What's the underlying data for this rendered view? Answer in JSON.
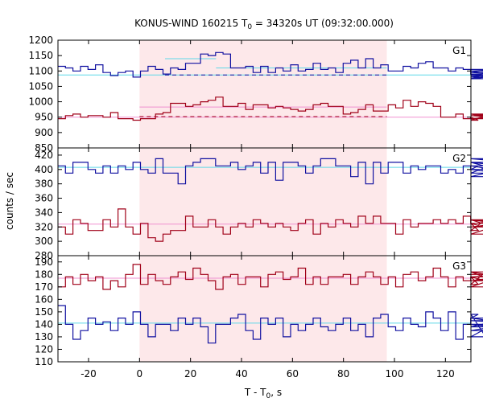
{
  "chart_data": {
    "type": "line",
    "title_prefix": "KONUS-WIND 160215 T",
    "title_sub": "0",
    "title_suffix": " = 34320s UT (09:32:00.000)",
    "xlabel_main": "T - T",
    "xlabel_sub": "0",
    "xlabel_suffix": ", s",
    "ylabel": "counts / sec",
    "xlim": [
      -32,
      130
    ],
    "xticks": [
      -20,
      0,
      20,
      40,
      60,
      80,
      100,
      120
    ],
    "xtick_labels": [
      "-20",
      "0",
      "20",
      "40",
      "60",
      "80",
      "100",
      "120"
    ],
    "highlight_interval": [
      0,
      97
    ],
    "bin_start": -32,
    "bin_width": 2.944,
    "colors": {
      "blue": "#1010a0",
      "red": "#a00018",
      "cyan": "#5fd8e8",
      "pink": "#f090d0",
      "shade": "#fde8ea"
    },
    "panels": [
      {
        "name": "G1",
        "ylim": [
          850,
          1200
        ],
        "yticks": [
          850,
          900,
          950,
          1000,
          1050,
          1100,
          1150,
          1200
        ],
        "ytick_labels": [
          "850",
          "900",
          "950",
          "1000",
          "1050",
          "1100",
          "1150",
          "1200"
        ],
        "series": [
          {
            "color": "blue",
            "values": [
              1115,
              1110,
              1100,
              1115,
              1105,
              1120,
              1095,
              1085,
              1095,
              1100,
              1080,
              1100,
              1115,
              1105,
              1090,
              1110,
              1105,
              1125,
              1125,
              1155,
              1150,
              1160,
              1155,
              1110,
              1110,
              1115,
              1095,
              1115,
              1095,
              1110,
              1100,
              1120,
              1100,
              1105,
              1125,
              1105,
              1110,
              1095,
              1125,
              1135,
              1110,
              1140,
              1110,
              1120,
              1100,
              1100,
              1115,
              1110,
              1125,
              1130,
              1110,
              1110,
              1100,
              1110,
              1105,
              1090,
              1075,
              1080,
              1090,
              1080,
              1100,
              1075,
              1105,
              1095,
              1085
            ]
          },
          {
            "color": "red",
            "values": [
              945,
              955,
              960,
              950,
              955,
              955,
              950,
              965,
              945,
              945,
              940,
              945,
              945,
              960,
              965,
              995,
              995,
              985,
              990,
              1000,
              1005,
              1015,
              985,
              985,
              995,
              975,
              990,
              990,
              980,
              985,
              980,
              975,
              970,
              975,
              990,
              995,
              985,
              985,
              960,
              965,
              975,
              990,
              970,
              970,
              990,
              980,
              1005,
              985,
              1000,
              995,
              985,
              950,
              950,
              960,
              945,
              950,
              940,
              955,
              960,
              945,
              955,
              945,
              955,
              960,
              945
            ]
          }
        ],
        "fits": [
          {
            "kind": "bg",
            "color": "cyan",
            "value": 1087
          },
          {
            "kind": "peak",
            "color": "cyan",
            "value": 1140,
            "x0": 10,
            "x1": 30
          },
          {
            "kind": "peak",
            "color": "cyan",
            "value": 1110,
            "x0": 30,
            "x1": 97
          },
          {
            "kind": "dashed",
            "color": "blue",
            "value": 1087,
            "x0": 10,
            "x1": 97
          },
          {
            "kind": "bg",
            "color": "pink",
            "value": 950
          },
          {
            "kind": "peak",
            "color": "pink",
            "value": 983,
            "x0": 0,
            "x1": 97
          },
          {
            "kind": "dashed",
            "color": "red",
            "value": 952,
            "x0": 0,
            "x1": 97
          }
        ]
      },
      {
        "name": "G2",
        "ylim": [
          280,
          430
        ],
        "yticks": [
          280,
          300,
          320,
          340,
          360,
          380,
          400,
          420
        ],
        "ytick_labels": [
          "280",
          "300",
          "320",
          "340",
          "360",
          "380",
          "400",
          "420"
        ],
        "series": [
          {
            "color": "blue",
            "values": [
              405,
              395,
              410,
              410,
              400,
              395,
              405,
              395,
              405,
              400,
              410,
              400,
              395,
              415,
              395,
              395,
              380,
              405,
              410,
              415,
              415,
              405,
              405,
              410,
              400,
              405,
              410,
              395,
              410,
              385,
              410,
              410,
              405,
              395,
              405,
              415,
              415,
              405,
              405,
              390,
              410,
              380,
              410,
              395,
              410,
              410,
              395,
              405,
              400,
              405,
              405,
              395,
              400,
              395,
              405,
              400,
              405,
              405,
              400,
              395,
              415,
              410,
              390,
              410,
              400
            ]
          },
          {
            "color": "red",
            "values": [
              320,
              310,
              330,
              325,
              315,
              315,
              330,
              320,
              345,
              320,
              310,
              325,
              305,
              300,
              310,
              315,
              315,
              335,
              320,
              320,
              330,
              320,
              310,
              320,
              325,
              320,
              330,
              325,
              320,
              325,
              320,
              315,
              325,
              330,
              310,
              325,
              320,
              330,
              325,
              320,
              335,
              325,
              335,
              325,
              325,
              310,
              330,
              320,
              325,
              325,
              330,
              325,
              330,
              325,
              335,
              325,
              315,
              330,
              320,
              325,
              310,
              330,
              320,
              330,
              325
            ]
          }
        ],
        "fits": [
          {
            "kind": "bg",
            "color": "cyan",
            "value": 403
          },
          {
            "kind": "bg",
            "color": "pink",
            "value": 324
          }
        ]
      },
      {
        "name": "G3",
        "ylim": [
          110,
          195
        ],
        "yticks": [
          110,
          120,
          130,
          140,
          150,
          160,
          170,
          180,
          190
        ],
        "ytick_labels": [
          "110",
          "120",
          "130",
          "140",
          "150",
          "160",
          "170",
          "180",
          "190"
        ],
        "series": [
          {
            "color": "blue",
            "values": [
              155,
              140,
              128,
              135,
              145,
              140,
              142,
              135,
              145,
              140,
              150,
              140,
              130,
              140,
              140,
              135,
              145,
              140,
              145,
              138,
              125,
              140,
              140,
              145,
              148,
              135,
              128,
              145,
              140,
              145,
              130,
              140,
              135,
              140,
              145,
              138,
              135,
              140,
              145,
              135,
              140,
              130,
              145,
              148,
              138,
              135,
              145,
              140,
              138,
              150,
              145,
              135,
              150,
              128,
              140,
              145,
              148,
              130,
              140,
              138,
              145,
              140,
              135,
              143,
              140
            ]
          },
          {
            "color": "red",
            "values": [
              170,
              178,
              172,
              180,
              175,
              178,
              168,
              175,
              170,
              180,
              188,
              172,
              180,
              175,
              172,
              178,
              182,
              176,
              185,
              180,
              175,
              168,
              178,
              180,
              172,
              178,
              178,
              170,
              180,
              182,
              176,
              178,
              185,
              172,
              178,
              172,
              178,
              178,
              180,
              172,
              178,
              182,
              178,
              172,
              178,
              170,
              180,
              182,
              175,
              178,
              185,
              178,
              170,
              178,
              175,
              178,
              172,
              182,
              175,
              178,
              170,
              182,
              175,
              178,
              180
            ]
          }
        ],
        "fits": [
          {
            "kind": "bg",
            "color": "pink",
            "value": 177
          },
          {
            "kind": "bg",
            "color": "cyan",
            "value": 141
          }
        ]
      }
    ]
  }
}
